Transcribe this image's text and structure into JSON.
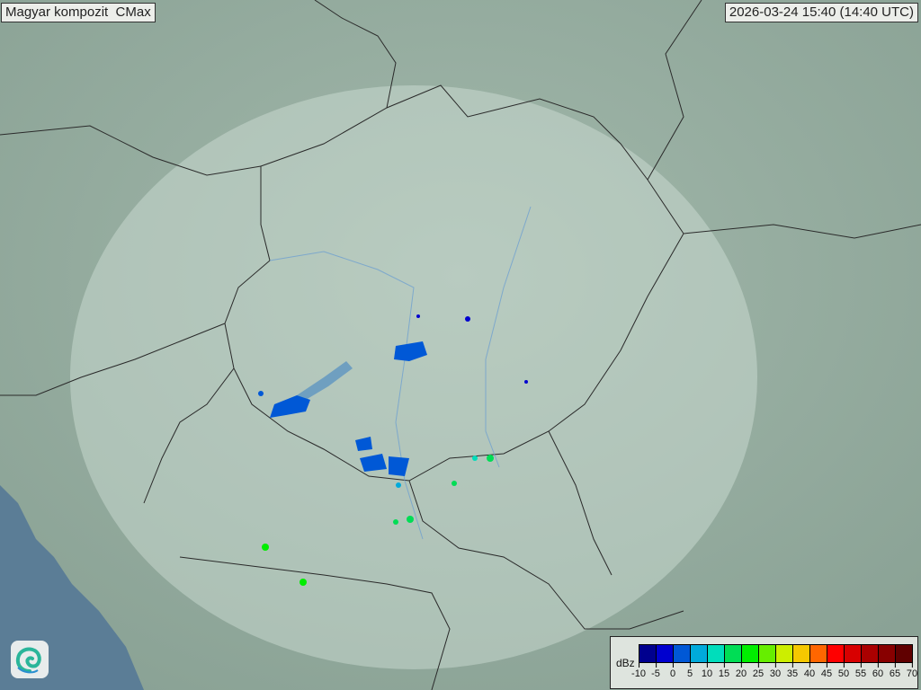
{
  "header": {
    "title": "Magyar kompozit  CMax",
    "timestamp": "2026-03-24 15:40 (14:40 UTC)"
  },
  "legend": {
    "unit": "dBz",
    "ticks": [
      "-10",
      "-5",
      "0",
      "5",
      "10",
      "15",
      "20",
      "25",
      "30",
      "35",
      "40",
      "45",
      "50",
      "55",
      "60",
      "65",
      "70"
    ],
    "colors": [
      "#00008e",
      "#0000cf",
      "#0058d6",
      "#00aadb",
      "#00ddbb",
      "#00dd55",
      "#00ee00",
      "#66ee00",
      "#ccee00",
      "#f5c800",
      "#ff6600",
      "#ff0000",
      "#d80000",
      "#aa0000",
      "#880000",
      "#600000"
    ]
  },
  "map": {
    "land_color": "#8fa79a",
    "sea_color": "#5b7d96",
    "radar_coverage_color": "#c9dbd2",
    "border_color": "#2a2a2a",
    "river_color": "#6fa0d0",
    "logo_icon": "swirl-logo-icon"
  }
}
